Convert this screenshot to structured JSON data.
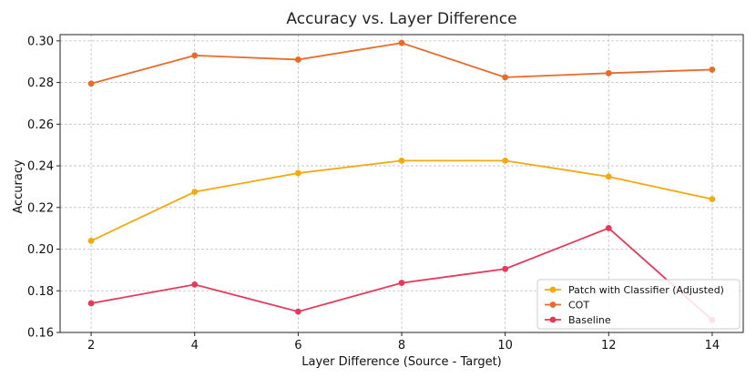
{
  "chart_data": {
    "type": "line",
    "title": "Accuracy vs. Layer Difference",
    "xlabel": "Layer Difference (Source - Target)",
    "ylabel": "Accuracy",
    "x": [
      2,
      4,
      6,
      8,
      10,
      12,
      14
    ],
    "xticks": [
      "2",
      "4",
      "6",
      "8",
      "10",
      "12",
      "14"
    ],
    "yticks": [
      "0.16",
      "0.18",
      "0.20",
      "0.22",
      "0.24",
      "0.26",
      "0.28",
      "0.30"
    ],
    "xlim": [
      1.4,
      14.6
    ],
    "ylim": [
      0.16,
      0.303
    ],
    "grid": true,
    "legend_position": "bottom-right",
    "series": [
      {
        "name": "Patch with Classifier (Adjusted)",
        "color": "#f5a80f",
        "values": [
          0.204,
          0.2275,
          0.2365,
          0.2425,
          0.2425,
          0.2348,
          0.224
        ]
      },
      {
        "name": "COT",
        "color": "#ea6a28",
        "values": [
          0.2795,
          0.293,
          0.291,
          0.299,
          0.2825,
          0.2845,
          0.2862
        ]
      },
      {
        "name": "Baseline",
        "color": "#e6395a",
        "values": [
          0.174,
          0.183,
          0.17,
          0.1838,
          0.1905,
          0.2101,
          0.166
        ]
      }
    ]
  }
}
